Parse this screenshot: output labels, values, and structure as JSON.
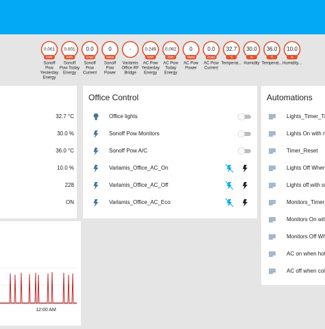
{
  "badges": [
    {
      "value": "0.001",
      "unit": "kWh",
      "label": [
        "Sonoff",
        "Pow",
        "Yesterday",
        "Energy"
      ]
    },
    {
      "value": "0.001",
      "unit": "kWh",
      "label": [
        "Sonoff",
        "Pow Today",
        "Energy"
      ]
    },
    {
      "value": "0.0",
      "unit": "Amps",
      "label": [
        "Sonoff",
        "Pow",
        "Current"
      ]
    },
    {
      "value": "0",
      "unit": "Watts",
      "label": [
        "Sonoff",
        "Pow",
        "Power"
      ]
    },
    {
      "value": "-",
      "label": [
        "Varlamis",
        "Office RF",
        "Bridge"
      ]
    },
    {
      "value": "0.249",
      "unit": "kWh",
      "label": [
        "AC Pow",
        "Yesterday",
        "Energy"
      ]
    },
    {
      "value": "0.092",
      "unit": "kWh",
      "label": [
        "AC Pow",
        "Today",
        "Energy"
      ]
    },
    {
      "value": "0",
      "unit": "Watts",
      "label": [
        "AC Pow",
        "Power"
      ]
    },
    {
      "value": "0.0",
      "unit": "Amps",
      "label": [
        "AC Pow",
        "Current"
      ]
    },
    {
      "value": "32.7",
      "unit": "°C",
      "label": [
        "Temperat..."
      ]
    },
    {
      "value": "30.0",
      "unit": "%",
      "label": [
        "Humidity"
      ]
    },
    {
      "value": "36.0",
      "unit": "°C",
      "label": [
        "Temperat..."
      ]
    },
    {
      "value": "10.0",
      "unit": "%",
      "label": [
        "Humidity..."
      ]
    }
  ],
  "sensors": {
    "values": [
      "32.7 °C",
      "30.0 %",
      "36.0 °C",
      "10.0 %",
      "228",
      "ON"
    ]
  },
  "office_control": {
    "title": "Office Control",
    "rows": [
      "Office lights",
      "Sonoff Pow Monitors",
      "Sonoff Pow A/C",
      "Varlamis_Office_AC_On",
      "Varlamis_Office_AC_Off",
      "Varlamis_Office_AC_Eco"
    ]
  },
  "automations": {
    "title": "Automations",
    "rows": [
      "Lights_Timer_Trig",
      "Lights On with mo",
      "Timer_Reset",
      "Lights Off When A",
      "Lights off with su",
      "Monitors_Timer_T",
      "Monitors On with",
      "Monitors Off Whe",
      "AC on when hot",
      "AC off when cold"
    ]
  },
  "history": {
    "x_label": "12:00 AM"
  }
}
